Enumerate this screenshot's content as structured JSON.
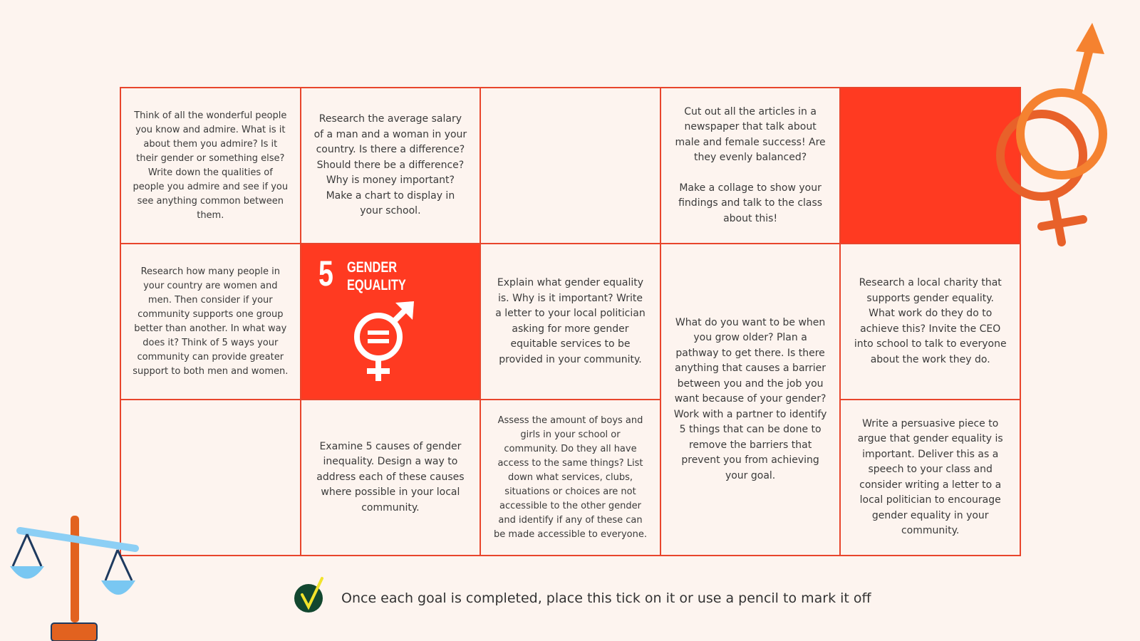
{
  "grid": {
    "cells": [
      {
        "text": "Think of all the wonderful people you know and admire. What is it about them you admire? Is it their gender or something else? Write down the qualities of people you admire and see if you see anything common between them."
      },
      {
        "text": "Research the average salary of a man and a woman in your country. Is there a difference? Should there be a difference? Why is money important? Make a chart to display in your school."
      },
      {
        "paragraphs": [
          "Cut out all the articles in a newspaper that talk about male and female success! Are they evenly balanced?",
          "Make a collage to show your findings and talk to the class about this!"
        ]
      },
      {
        "text": "Research how many people in your country are women and men. Then consider if your community supports one group better than another. In what way does it? Think of 5 ways your community can provide greater support to both men and women."
      },
      {
        "text": "Explain what gender equality is. Why is it important? Write a letter to your local politician asking for more gender equitable services to be provided in your community."
      },
      {
        "text": "What do you want to be when you grow older? Plan a pathway to get there. Is there anything that causes a barrier between you and the job you want because of your gender? Work with a partner to identify 5 things that can be done to remove the barriers that prevent you from achieving your goal."
      },
      {
        "text": "Research a local charity that supports gender equality. What work do they do to achieve this? Invite the CEO into school to talk to everyone about the work they do."
      },
      {
        "text": "Examine 5 causes of gender inequality. Design a way to address each of these causes where possible in your local community."
      },
      {
        "text": "Assess the amount of boys and girls in your school or community. Do they all have access to the same things? List down what services, clubs, situations or choices are not accessible to the other gender and identify if any of these can be made accessible to everyone."
      },
      {
        "text": "Write a persuasive piece to argue that gender equality is important. Deliver this as a speech to your class and consider writing a letter to a local politician to encourage gender equality in your community."
      }
    ]
  },
  "sdg": {
    "number": "5",
    "title": [
      "GENDER",
      "EQUALITY"
    ]
  },
  "footer": {
    "text": "Once each goal is completed, place this tick on it or use a pencil to mark it off"
  }
}
